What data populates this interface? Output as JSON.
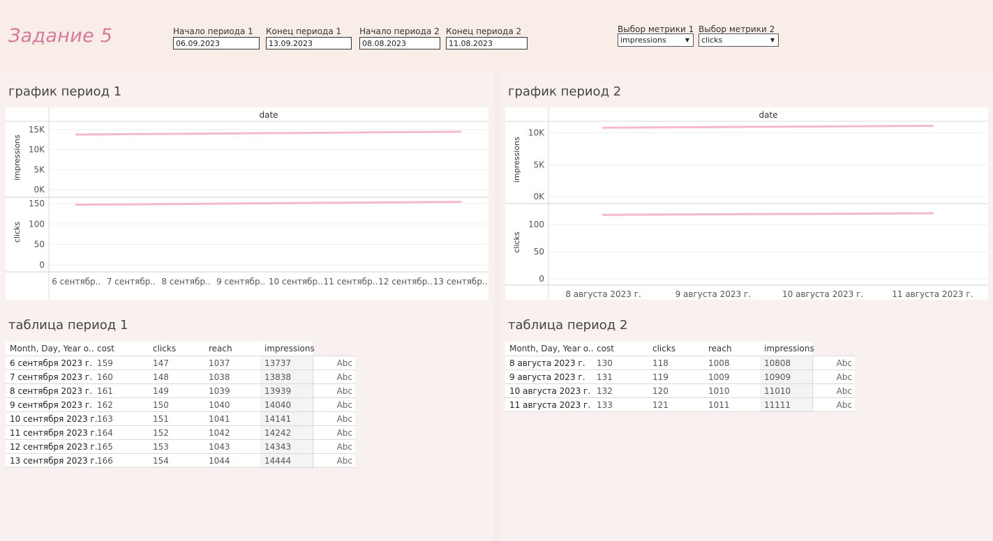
{
  "header": {
    "title": "Задание 5",
    "params": [
      {
        "label": "Начало периода 1",
        "value": "06.09.2023"
      },
      {
        "label": "Конец периода 1",
        "value": "13.09.2023"
      },
      {
        "label": "Начало периода 2",
        "value": "08.08.2023"
      },
      {
        "label": "Конец периода 2",
        "value": "11.08.2023"
      }
    ],
    "metrics": [
      {
        "label": "Выбор метрики 1",
        "value": "impressions"
      },
      {
        "label": "Выбор метрики 2",
        "value": "clicks"
      }
    ]
  },
  "colors": {
    "line": "#f5b8cf",
    "title": "#d57a9a",
    "background": "#f6ece9"
  },
  "sections": {
    "chart1_title": "график период 1",
    "chart2_title": "график период 2",
    "table1_title": "таблица период 1",
    "table2_title": "таблица период 2"
  },
  "chart_data": [
    {
      "type": "line",
      "header": "date",
      "categories": [
        "6 сентябр..",
        "7 сентябр..",
        "8 сентябр..",
        "9 сентябр..",
        "10 сентябр..",
        "11 сентябр..",
        "12 сентябр..",
        "13 сентябр.."
      ],
      "panes": [
        {
          "ylabel": "impressions",
          "ticks": [
            "15K",
            "10K",
            "5K",
            "0K"
          ],
          "tick_values": [
            15000,
            10000,
            5000,
            0
          ],
          "ylim": [
            0,
            16000
          ],
          "values": [
            13737,
            13838,
            13939,
            14040,
            14141,
            14242,
            14343,
            14444
          ]
        },
        {
          "ylabel": "clicks",
          "ticks": [
            "150",
            "100",
            "50",
            "0"
          ],
          "tick_values": [
            150,
            100,
            50,
            0
          ],
          "ylim": [
            0,
            160
          ],
          "values": [
            147,
            148,
            149,
            150,
            151,
            152,
            153,
            154
          ]
        }
      ]
    },
    {
      "type": "line",
      "header": "date",
      "categories": [
        "8 августа 2023 г.",
        "9 августа 2023 г.",
        "10 августа 2023 г.",
        "11 августа 2023 г."
      ],
      "panes": [
        {
          "ylabel": "impressions",
          "ticks": [
            "10K",
            "5K",
            "0K"
          ],
          "tick_values": [
            10000,
            5000,
            0
          ],
          "ylim": [
            0,
            11600
          ],
          "values": [
            10808,
            10909,
            11010,
            11111
          ]
        },
        {
          "ylabel": "clicks",
          "ticks": [
            "100",
            "50",
            "0"
          ],
          "tick_values": [
            100,
            50,
            0
          ],
          "ylim": [
            0,
            135
          ],
          "values": [
            118,
            119,
            120,
            121
          ]
        }
      ]
    }
  ],
  "table1": {
    "columns": [
      "Month, Day, Year o..",
      "cost",
      "clicks",
      "reach",
      "impressions"
    ],
    "rows": [
      [
        "6 сентября 2023 г.",
        "159",
        "147",
        "1037",
        "13737",
        "Abc"
      ],
      [
        "7 сентября 2023 г.",
        "160",
        "148",
        "1038",
        "13838",
        "Abc"
      ],
      [
        "8 сентября 2023 г.",
        "161",
        "149",
        "1039",
        "13939",
        "Abc"
      ],
      [
        "9 сентября 2023 г.",
        "162",
        "150",
        "1040",
        "14040",
        "Abc"
      ],
      [
        "10 сентября 2023 г.",
        "163",
        "151",
        "1041",
        "14141",
        "Abc"
      ],
      [
        "11 сентября 2023 г.",
        "164",
        "152",
        "1042",
        "14242",
        "Abc"
      ],
      [
        "12 сентября 2023 г.",
        "165",
        "153",
        "1043",
        "14343",
        "Abc"
      ],
      [
        "13 сентября 2023 г.",
        "166",
        "154",
        "1044",
        "14444",
        "Abc"
      ]
    ]
  },
  "table2": {
    "columns": [
      "Month, Day, Year o..",
      "cost",
      "clicks",
      "reach",
      "impressions"
    ],
    "rows": [
      [
        "8 августа 2023 г.",
        "130",
        "118",
        "1008",
        "10808",
        "Abc"
      ],
      [
        "9 августа 2023 г.",
        "131",
        "119",
        "1009",
        "10909",
        "Abc"
      ],
      [
        "10 августа 2023 г.",
        "132",
        "120",
        "1010",
        "11010",
        "Abc"
      ],
      [
        "11 августа 2023 г.",
        "133",
        "121",
        "1011",
        "11111",
        "Abc"
      ]
    ]
  }
}
